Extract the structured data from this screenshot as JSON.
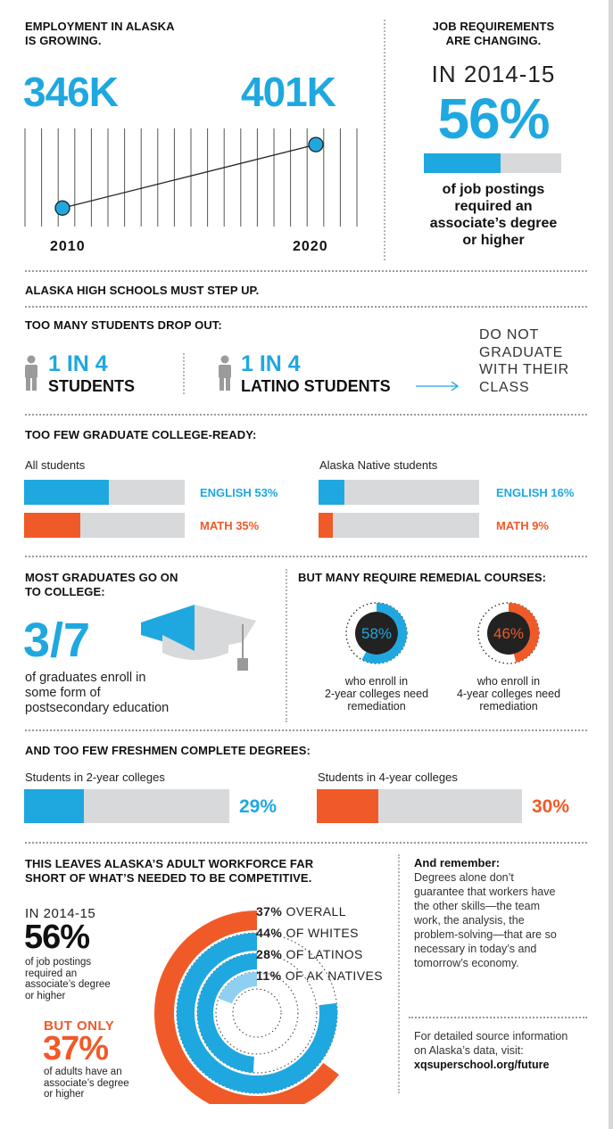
{
  "colors": {
    "blue": "#1fa8e0",
    "orange": "#f05a28",
    "gray": "#d8d9db",
    "light_blue": "#8fd0f0"
  },
  "employment": {
    "title_line1": "EMPLOYMENT IN ALASKA",
    "title_line2": "IS GROWING.",
    "value_2010": "346K",
    "value_2020": "401K",
    "year_2010": "2010",
    "year_2020": "2020"
  },
  "job_req": {
    "title_line1": "JOB REQUIREMENTS",
    "title_line2": "ARE CHANGING.",
    "year": "IN 2014-15",
    "percent": "56%",
    "fraction": 0.56,
    "desc_line1": "of job postings",
    "desc_line2": "required an",
    "desc_line3": "associate’s degree",
    "desc_line4": "or higher"
  },
  "high_schools": {
    "title": "ALASKA HIGH SCHOOLS MUST STEP UP."
  },
  "dropout": {
    "title": "TOO MANY STUDENTS DROP OUT:",
    "stat1_ratio": "1 IN 4",
    "stat1_label": "STUDENTS",
    "stat2_ratio": "1 IN 4",
    "stat2_label": "LATINO STUDENTS",
    "outcome_line1": "DO NOT",
    "outcome_line2": "GRADUATE",
    "outcome_line3": "WITH THEIR",
    "outcome_line4": "CLASS"
  },
  "college_ready": {
    "title": "TOO FEW GRADUATE COLLEGE-READY:",
    "group1": "All students",
    "group2": "Alaska Native students",
    "g1_english": "ENGLISH 53%",
    "g1_math": "MATH 35%",
    "g2_english": "ENGLISH 16%",
    "g2_math": "MATH 9%"
  },
  "go_to_college": {
    "title_line1": "MOST GRADUATES GO ON",
    "title_line2": "TO COLLEGE:",
    "fraction": "3/7",
    "desc_line1": "of graduates enroll in",
    "desc_line2": "some form of",
    "desc_line3": "postsecondary education"
  },
  "remedial": {
    "title": "BUT MANY REQUIRE REMEDIAL COURSES:",
    "two_year_pct": "58%",
    "two_year_line1": "who enroll in",
    "two_year_line2": "2-year colleges need",
    "two_year_line3": "remediation",
    "four_year_pct": "46%",
    "four_year_line1": "who enroll in",
    "four_year_line2": "4-year colleges need",
    "four_year_line3": "remediation"
  },
  "complete": {
    "title": "AND TOO FEW FRESHMEN COMPLETE DEGREES:",
    "group1": "Students in 2-year colleges",
    "group1_pct": "29%",
    "group2": "Students in 4-year colleges",
    "group2_pct": "30%"
  },
  "workforce": {
    "title_line1": "THIS LEAVES ALASKA’S ADULT WORKFORCE FAR",
    "title_line2": "SHORT OF WHAT’S NEEDED TO BE COMPETITIVE.",
    "year": "IN 2014-15",
    "pct_jobs": "56%",
    "jobs_line1": "of job postings",
    "jobs_line2": "required an",
    "jobs_line3": "associate’s degree",
    "jobs_line4": "or higher",
    "but_only": "BUT ONLY",
    "pct_adults": "37%",
    "adults_line1": "of adults have an",
    "adults_line2": "associate’s degree",
    "adults_line3": "or higher",
    "ring1_pct": "37%",
    "ring1_label": "OVERALL",
    "ring2_pct": "44%",
    "ring2_label": "OF WHITES",
    "ring3_pct": "28%",
    "ring3_label": "OF LATINOS",
    "ring4_pct": "11%",
    "ring4_label": "OF AK NATIVES"
  },
  "remember": {
    "title": "And remember:",
    "line1": "Degrees alone don’t",
    "line2": "guarantee that workers have",
    "line3": "the other skills—the team",
    "line4": "work, the analysis, the",
    "line5": "problem-solving—that are so",
    "line6": "necessary in today’s and",
    "line7": "tomorrow’s economy.",
    "source_line1": "For detailed source information",
    "source_line2": "on Alaska’s data, visit:",
    "source_url": "xqsuperschool.org/future"
  },
  "chart_data": [
    {
      "type": "line",
      "x": [
        "2010",
        "2020"
      ],
      "values": [
        346,
        401
      ],
      "unit": "K"
    },
    {
      "type": "bar",
      "values": [
        56
      ]
    },
    {
      "type": "bar",
      "categories": [
        "ENGLISH",
        "MATH"
      ],
      "series": [
        {
          "name": "All students",
          "values": [
            53,
            35
          ]
        },
        {
          "name": "Alaska Native students",
          "values": [
            16,
            9
          ]
        }
      ]
    },
    {
      "type": "pie",
      "values": [
        58,
        46
      ]
    },
    {
      "type": "bar",
      "categories": [
        "Students in 2-year colleges",
        "Students in 4-year colleges"
      ],
      "values": [
        29,
        30
      ]
    },
    {
      "type": "bar",
      "categories": [
        "OVERALL",
        "OF WHITES",
        "OF LATINOS",
        "OF AK NATIVES"
      ],
      "values": [
        37,
        44,
        28,
        11
      ]
    }
  ]
}
